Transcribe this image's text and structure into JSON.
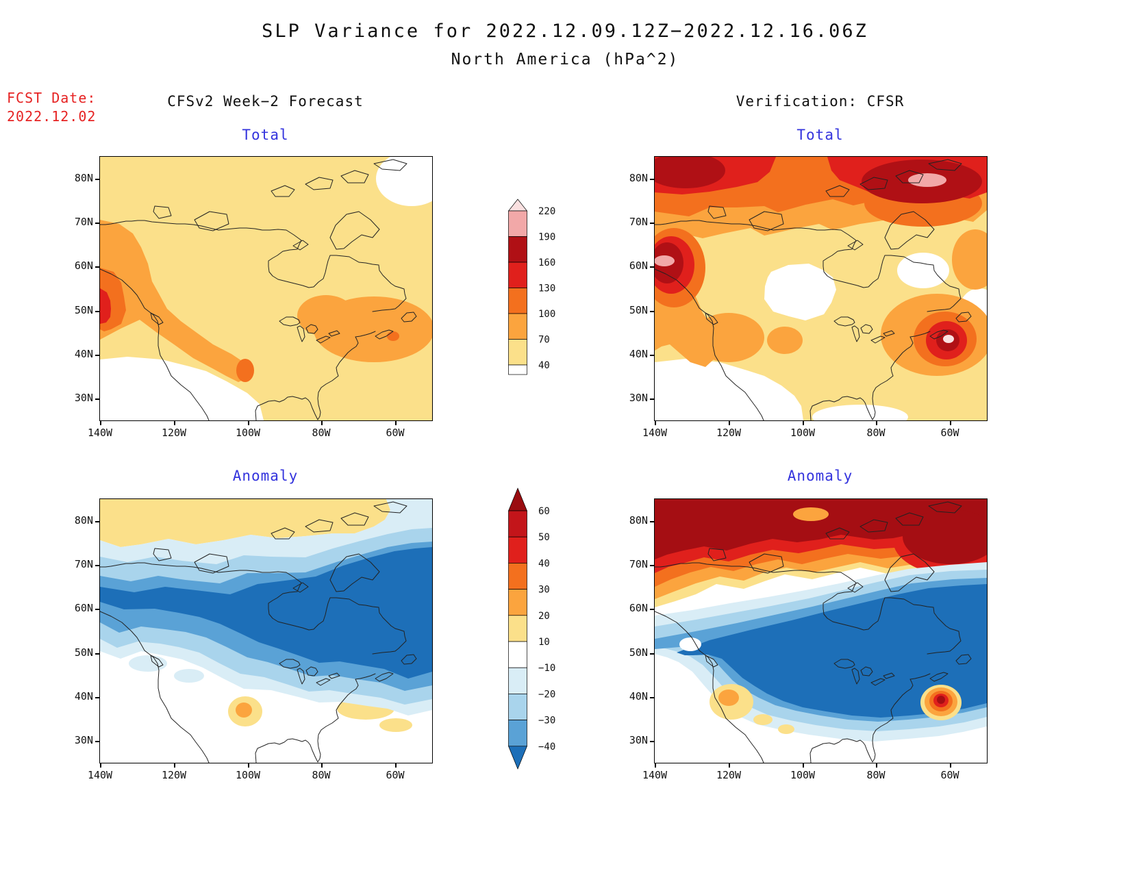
{
  "title": {
    "line1": "SLP Variance for 2022.12.09.12Z−2022.12.16.06Z",
    "line2": "North America (hPa^2)"
  },
  "fcst": {
    "label": "FCST Date:",
    "date": "2022.12.02"
  },
  "columns": {
    "left": "CFSv2 Week−2 Forecast",
    "right": "Verification: CFSR"
  },
  "panels": {
    "forecast_total": {
      "title": "Total"
    },
    "verification_total": {
      "title": "Total"
    },
    "forecast_anomaly": {
      "title": "Anomaly"
    },
    "verification_anomaly": {
      "title": "Anomaly"
    }
  },
  "axes": {
    "lat_ticks": [
      "80N",
      "70N",
      "60N",
      "50N",
      "40N",
      "30N"
    ],
    "lon_ticks": [
      "140W",
      "120W",
      "100W",
      "80W",
      "60W"
    ]
  },
  "colorbars": {
    "total": {
      "labels": [
        "220",
        "190",
        "160",
        "130",
        "100",
        "70",
        "40"
      ],
      "segment_colors": [
        "#F2A8A8",
        "#B01015",
        "#E0201C",
        "#F3701E",
        "#FBA43E",
        "#FBE08A"
      ],
      "over_color": "#FAE0E0",
      "under_color": "#FFFFFF"
    },
    "anomaly": {
      "labels": [
        "60",
        "50",
        "40",
        "30",
        "20",
        "10",
        "−10",
        "−20",
        "−30",
        "−40"
      ],
      "segment_colors": [
        "#C3151A",
        "#E0201C",
        "#F3701E",
        "#FBA43E",
        "#FBE08A",
        "#FFFFFF",
        "#D9EDF6",
        "#A9D4EC",
        "#5AA2D6"
      ],
      "over_color": "#9A0C10",
      "under_color": "#1D6FB8"
    }
  },
  "palette": {
    "pale_yellow": "#FBE08A",
    "orange": "#FBA43E",
    "dark_orange": "#F3701E",
    "red": "#E0201C",
    "dark_red": "#B01015",
    "darker_red": "#A50E13",
    "pink": "#F2A8A8",
    "pale_pink": "#FAE0E0",
    "white": "#FFFFFF",
    "pale_blue": "#D9EDF6",
    "light_blue": "#A9D4EC",
    "mid_blue": "#5AA2D6",
    "dark_blue": "#1D6FB8",
    "title_black": "#111111",
    "panel_title_blue": "#3333DD",
    "fcst_red": "#E62222"
  },
  "chart_data": {
    "type": "heatmap",
    "subtype": "filled-contour maps over North America",
    "title": "SLP Variance for 2022.12.09.12Z−2022.12.16.06Z",
    "subtitle": "North America (hPa^2)",
    "forecast_date": "2022.12.02",
    "grid": "2 columns (CFSv2 Week−2 Forecast | Verification: CFSR) × 2 rows (Total | Anomaly)",
    "x_axis": {
      "ticks": [
        "140W",
        "120W",
        "100W",
        "80W",
        "60W"
      ],
      "range": "approx 140W to 50W"
    },
    "y_axis": {
      "ticks": [
        "80N",
        "70N",
        "60N",
        "50N",
        "40N",
        "30N"
      ],
      "range": "approx 25N to 85N"
    },
    "total_levels_hPa2": [
      40,
      70,
      100,
      130,
      160,
      190,
      220
    ],
    "anomaly_levels_hPa2": [
      -40,
      -30,
      -20,
      -10,
      10,
      20,
      30,
      40,
      50,
      60
    ],
    "panels": [
      {
        "id": "forecast_total",
        "column": "CFSv2 Week−2 Forecast",
        "row": "Total",
        "summary": "Broad 40−70 over most of Canada; 70−130 band along the Pacific coast 40−70N curving inland to about 100W 37N; 70−100 over the Northeast and western Atlantic 40−52N; maximum 130−160 at the west edge near 50N 140W; values <40 over Mexico, the far south and a small area near 80N 60W."
      },
      {
        "id": "verification_total",
        "column": "Verification: CFSR",
        "row": "Total",
        "summary": "Very high variance 100−220 across the Arctic 68−85N with maxima >190 near 77N 65W and 62N 135W; secondary maximum >190 near 42N 60W off the US east coast; minima <40 over the central continent around 50−58N 100W and in the south."
      },
      {
        "id": "forecast_anomaly",
        "column": "CFSv2 Week−2 Forecast",
        "row": "Anomaly",
        "summary": "Negative anomaly band (−10 to below −40) from the Gulf of Alaska across central Canada to the western Atlantic, strongest (<−40) near 55−65N and off the east coast; weak positive 10−20 along the Arctic 72−85N; small +20/+30 spot near 36N 100W; near zero (white) in the southwest."
      },
      {
        "id": "verification_anomaly",
        "column": "Verification: CFSR",
        "row": "Anomaly",
        "summary": "Strong positive anomalies >60 across the whole Arctic band 65−85N; strong negative <−40 over most of the continent 30−60N; small positive maximum >50 near 39N 62W; weak +10/+20 spots near 33N 120W."
      }
    ]
  }
}
